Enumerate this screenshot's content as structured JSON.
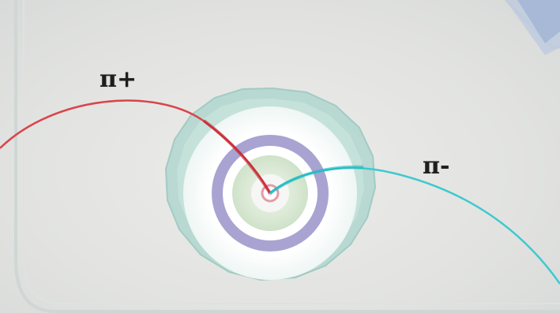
{
  "labels": {
    "pi_plus": "π+",
    "pi_minus": "π-"
  },
  "colors": {
    "background": "#e3e5e4",
    "track_pi_plus": "#d9454c",
    "track_pi_minus": "#3ec9d0",
    "calorimeter_outer": "#b4d8d0",
    "calorimeter_inner": "#ffffff",
    "tracker": "#a9a3d2",
    "vertex_detector": "#cfe2c9",
    "beam_pipe": "#e59aa8",
    "frame_corner": "#9fb3d6"
  }
}
